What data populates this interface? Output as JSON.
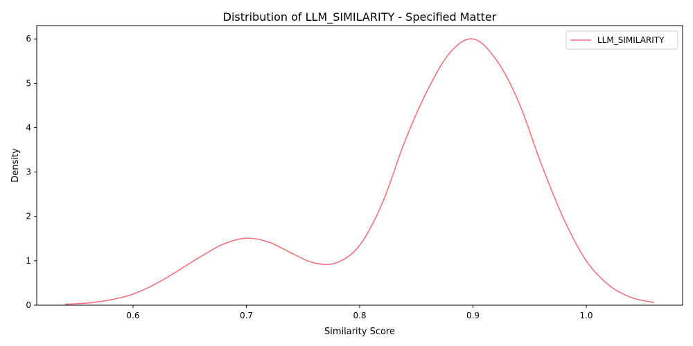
{
  "chart_data": {
    "type": "line",
    "title": "Distribution of LLM_SIMILARITY - Specified Matter",
    "xlabel": "Similarity Score",
    "ylabel": "Density",
    "xlim": [
      0.515,
      1.085
    ],
    "ylim": [
      0,
      6.3
    ],
    "xticks": [
      0.6,
      0.7,
      0.8,
      0.9,
      1.0
    ],
    "xtick_labels": [
      "0.6",
      "0.7",
      "0.8",
      "0.9",
      "1.0"
    ],
    "yticks": [
      0,
      1,
      2,
      3,
      4,
      5,
      6
    ],
    "ytick_labels": [
      "0",
      "1",
      "2",
      "3",
      "4",
      "5",
      "6"
    ],
    "grid": false,
    "legend_position": "top-right",
    "series": [
      {
        "name": "LLM_SIMILARITY",
        "color": "#f0717f",
        "x": [
          0.54,
          0.56,
          0.58,
          0.6,
          0.62,
          0.64,
          0.66,
          0.68,
          0.7,
          0.72,
          0.74,
          0.76,
          0.78,
          0.8,
          0.82,
          0.84,
          0.86,
          0.88,
          0.9,
          0.92,
          0.94,
          0.96,
          0.98,
          1.0,
          1.02,
          1.04,
          1.06
        ],
        "y": [
          0.02,
          0.05,
          0.12,
          0.25,
          0.48,
          0.78,
          1.1,
          1.38,
          1.51,
          1.42,
          1.17,
          0.95,
          0.96,
          1.35,
          2.3,
          3.7,
          4.85,
          5.7,
          6.0,
          5.55,
          4.6,
          3.2,
          1.95,
          1.0,
          0.45,
          0.17,
          0.06
        ]
      }
    ]
  }
}
